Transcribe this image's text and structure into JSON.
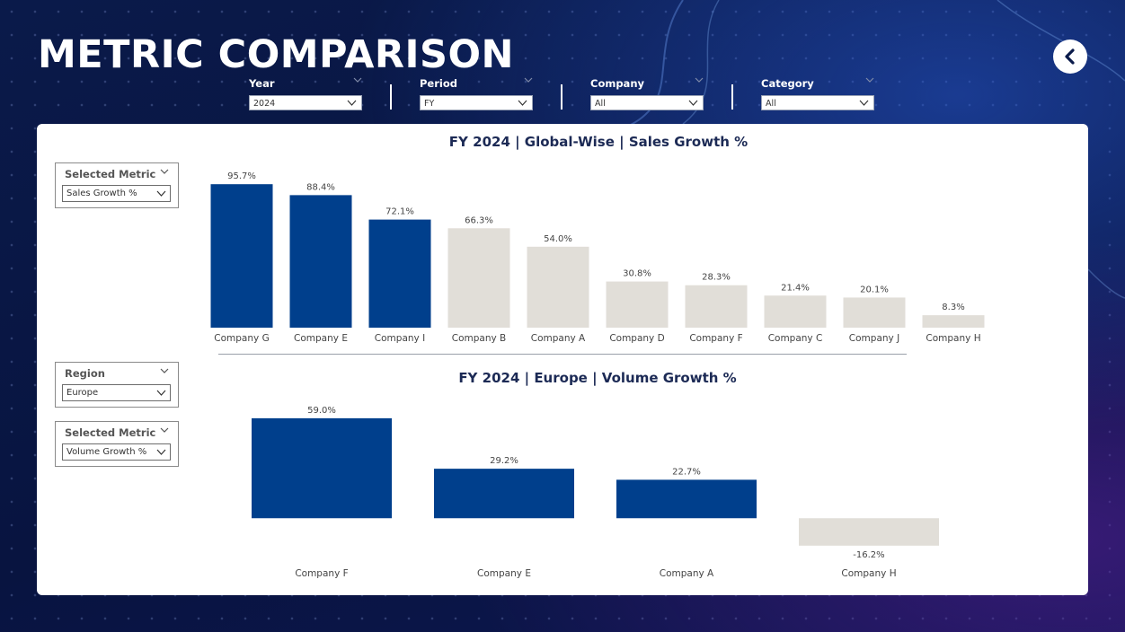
{
  "page": {
    "title": "METRIC COMPARISON"
  },
  "filters": [
    {
      "label": "Year",
      "value": "2024"
    },
    {
      "label": "Period",
      "value": "FY"
    },
    {
      "label": "Company",
      "value": "All"
    },
    {
      "label": "Category",
      "value": "All"
    }
  ],
  "colors": {
    "highlight": "#003f8c",
    "muted": "#e1ded8",
    "title": "#1c2a55"
  },
  "left_panel": {
    "metric1": {
      "label": "Selected Metric",
      "value": "Sales Growth %"
    },
    "region": {
      "label": "Region",
      "value": "Europe"
    },
    "metric2": {
      "label": "Selected Metric",
      "value": "Volume Growth %"
    }
  },
  "chart_data": [
    {
      "type": "bar",
      "title": "FY 2024 | Global-Wise | Sales Growth %",
      "categories": [
        "Company G",
        "Company E",
        "Company I",
        "Company B",
        "Company A",
        "Company D",
        "Company F",
        "Company C",
        "Company J",
        "Company H"
      ],
      "values": [
        95.7,
        88.4,
        72.1,
        66.3,
        54.0,
        30.8,
        28.3,
        21.4,
        20.1,
        8.3
      ],
      "labels": [
        "95.7%",
        "88.4%",
        "72.1%",
        "66.3%",
        "54.0%",
        "30.8%",
        "28.3%",
        "21.4%",
        "20.1%",
        "8.3%"
      ],
      "highlighted": [
        true,
        true,
        true,
        false,
        false,
        false,
        false,
        false,
        false,
        false
      ],
      "ylim": [
        0,
        100
      ],
      "grid": false
    },
    {
      "type": "bar",
      "title": "FY 2024 | Europe | Volume Growth %",
      "categories": [
        "Company F",
        "Company E",
        "Company A",
        "Company H"
      ],
      "values": [
        59.0,
        29.2,
        22.7,
        -16.2
      ],
      "labels": [
        "59.0%",
        "29.2%",
        "22.7%",
        "-16.2%"
      ],
      "highlighted": [
        true,
        true,
        true,
        false
      ],
      "ylim": [
        -20,
        60
      ],
      "grid": false
    }
  ]
}
